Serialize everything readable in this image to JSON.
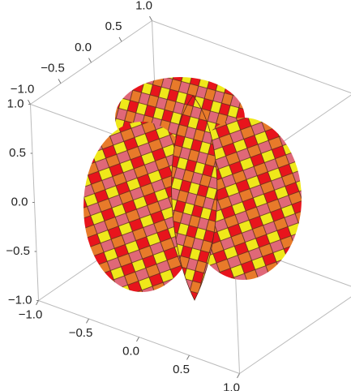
{
  "chart_data": {
    "type": "surface3d",
    "box": true,
    "xlim": [
      -1,
      1
    ],
    "ylim": [
      -1,
      1
    ],
    "zlim": [
      -1,
      1
    ],
    "xticks": [
      {
        "value": -1,
        "label": "−1.0"
      },
      {
        "value": -0.5,
        "label": "−0.5"
      },
      {
        "value": 0,
        "label": "0.0"
      },
      {
        "value": 0.5,
        "label": "0.5"
      },
      {
        "value": 1,
        "label": "1.0"
      }
    ],
    "yticks": [
      {
        "value": -1,
        "label": "−1.0"
      },
      {
        "value": -0.5,
        "label": "−0.5"
      },
      {
        "value": 0,
        "label": "0.0"
      },
      {
        "value": 0.5,
        "label": "0.5"
      },
      {
        "value": 1,
        "label": "1.0"
      }
    ],
    "zticks": [
      {
        "value": -1,
        "label": "−1.0"
      },
      {
        "value": -0.5,
        "label": "−0.5"
      },
      {
        "value": 0,
        "label": "0.0"
      },
      {
        "value": 0.5,
        "label": "0.5"
      },
      {
        "value": 1,
        "label": "1.0"
      }
    ]
  }
}
